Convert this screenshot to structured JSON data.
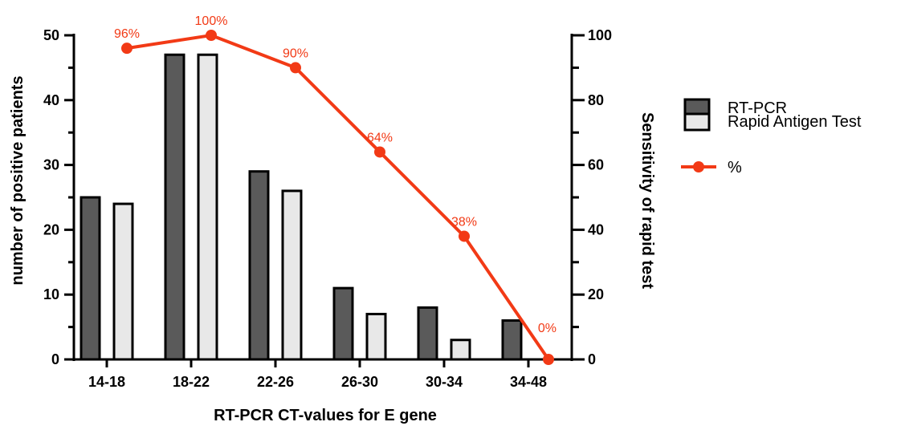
{
  "chart_data": {
    "type": "bar",
    "categories": [
      "14-18",
      "18-22",
      "22-26",
      "26-30",
      "30-34",
      "34-48"
    ],
    "series": [
      {
        "name": "RT-PCR",
        "type": "bar",
        "axis": "left",
        "values": [
          25,
          47,
          29,
          11,
          8,
          6
        ],
        "color": "#5a5a5a"
      },
      {
        "name": "Rapid Antigen Test",
        "type": "bar",
        "axis": "left",
        "values": [
          24,
          47,
          26,
          7,
          3,
          0
        ],
        "color": "#e8e8e8"
      },
      {
        "name": "%",
        "type": "line",
        "axis": "right",
        "values": [
          96,
          100,
          90,
          64,
          38,
          0
        ],
        "color": "#f23a16",
        "labels": [
          "96%",
          "100%",
          "90%",
          "64%",
          "38%",
          "0%"
        ]
      }
    ],
    "xlabel": "RT-PCR CT-values for E gene",
    "ylabel": "number of positive patients",
    "y2label": "Sensitivity of rapid test",
    "ylim": [
      0,
      50
    ],
    "y2lim": [
      0,
      100
    ],
    "yticks": [
      0,
      10,
      20,
      30,
      40,
      50
    ],
    "y2ticks": [
      0,
      20,
      40,
      60,
      80,
      100
    ],
    "grid": false,
    "legend_position": "right"
  }
}
